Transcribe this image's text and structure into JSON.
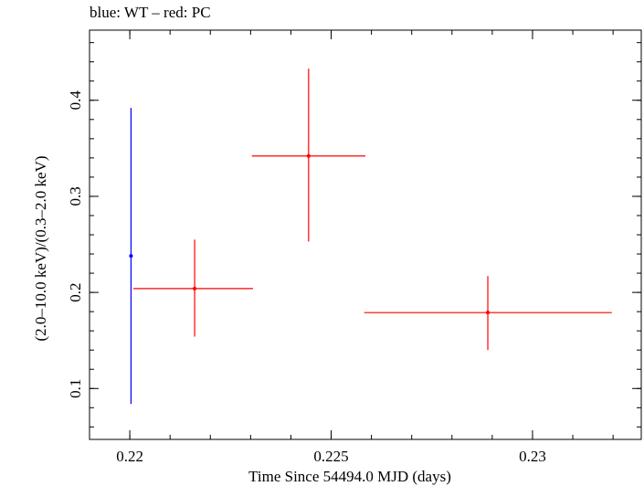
{
  "chart_data": {
    "type": "scatter",
    "title": "blue: WT – red: PC",
    "xlabel": "Time Since 54494.0 MJD (days)",
    "ylabel": "(2.0–10.0 keV)/(0.3–2.0 keV)",
    "xlim": [
      0.219,
      0.2327
    ],
    "ylim": [
      0.047,
      0.473
    ],
    "x_ticks": [
      0.22,
      0.225,
      0.23
    ],
    "x_tick_labels": [
      "0.22",
      "0.225",
      "0.23"
    ],
    "y_ticks": [
      0.1,
      0.2,
      0.3,
      0.4
    ],
    "y_tick_labels": [
      "0.1",
      "0.2",
      "0.3",
      "0.4"
    ],
    "grid": false,
    "legend": "none",
    "series": [
      {
        "name": "WT",
        "color": "#0000ff",
        "points": [
          {
            "x": 0.22003,
            "y": 0.238,
            "xerr": [
              0.22003,
              0.22003
            ],
            "yerr": [
              0.084,
              0.392
            ]
          }
        ]
      },
      {
        "name": "PC",
        "color": "#ff0000",
        "points": [
          {
            "x": 0.22161,
            "y": 0.204,
            "xerr": [
              0.22009,
              0.22306
            ],
            "yerr": [
              0.154,
              0.255
            ]
          },
          {
            "x": 0.22444,
            "y": 0.342,
            "xerr": [
              0.22303,
              0.22585
            ],
            "yerr": [
              0.253,
              0.433
            ]
          },
          {
            "x": 0.22889,
            "y": 0.179,
            "xerr": [
              0.22582,
              0.23197
            ],
            "yerr": [
              0.14,
              0.217
            ]
          }
        ]
      }
    ]
  }
}
